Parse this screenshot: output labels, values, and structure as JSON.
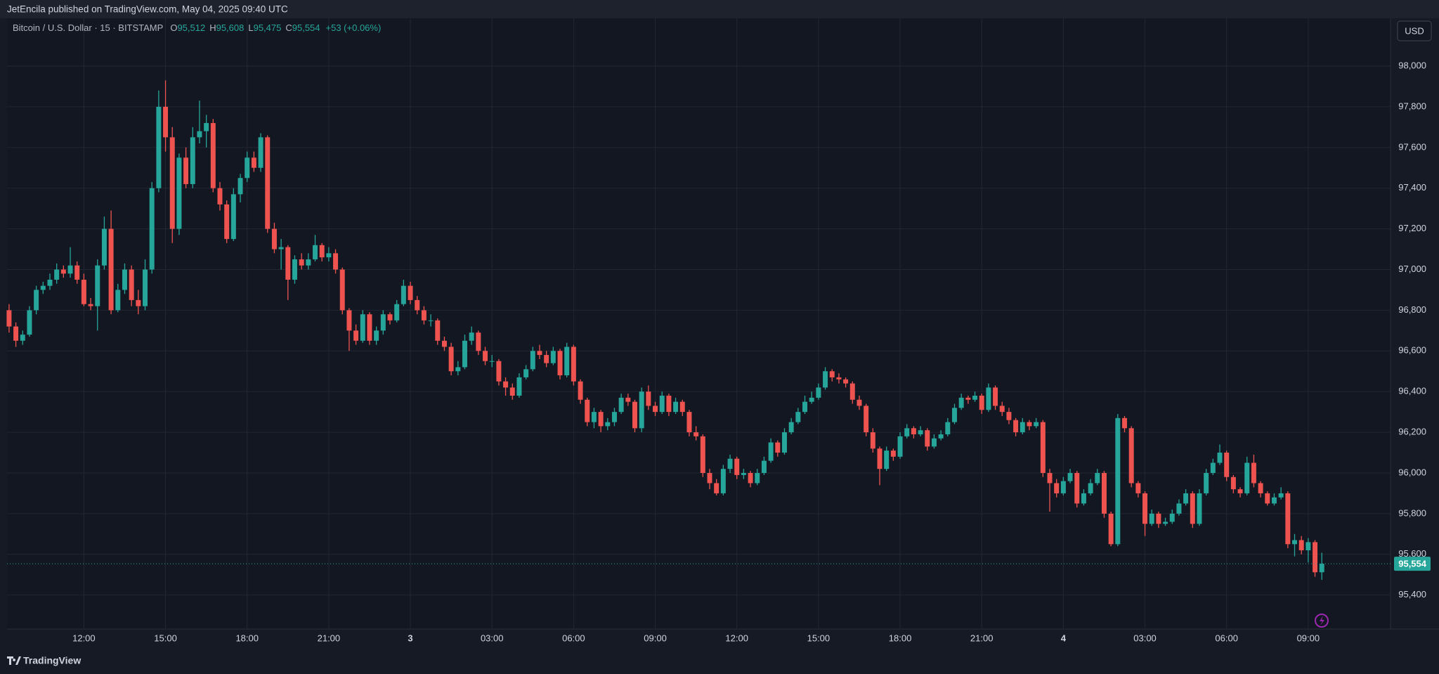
{
  "header": {
    "publisher_line": "JetEncila published on TradingView.com, May 04, 2025 09:40 UTC",
    "currency_button": "USD",
    "footer_brand": "TradingView"
  },
  "chart_data": {
    "type": "candlestick",
    "title": "Bitcoin / U.S. Dollar · 15 · BITSTAMP",
    "ohlc_legend": [
      {
        "label": "O",
        "value_label": "95,512"
      },
      {
        "label": "H",
        "value_label": "95,608"
      },
      {
        "label": "L",
        "value_label": "95,475"
      },
      {
        "label": "C",
        "value_label": "95,554"
      }
    ],
    "change_label": "+53 (+0.06%)",
    "last_price_label": "95,554",
    "up_color": "#26a69a",
    "down_color": "#ef5350",
    "grid": true,
    "xlim": [
      -0.3,
      203.1
    ],
    "xticks": [
      {
        "value": 11,
        "label": "12:00"
      },
      {
        "value": 23,
        "label": "15:00"
      },
      {
        "value": 35,
        "label": "18:00"
      },
      {
        "value": 47,
        "label": "21:00"
      },
      {
        "value": 59,
        "label": "3"
      },
      {
        "value": 71,
        "label": "03:00"
      },
      {
        "value": 83,
        "label": "06:00"
      },
      {
        "value": 95,
        "label": "09:00"
      },
      {
        "value": 107,
        "label": "12:00"
      },
      {
        "value": 119,
        "label": "15:00"
      },
      {
        "value": 131,
        "label": "18:00"
      },
      {
        "value": 143,
        "label": "21:00"
      },
      {
        "value": 155,
        "label": "4"
      },
      {
        "value": 167,
        "label": "03:00"
      },
      {
        "value": 179,
        "label": "06:00"
      },
      {
        "value": 191,
        "label": "09:00"
      }
    ],
    "ylim": [
      95233,
      98235
    ],
    "yticks": [
      {
        "value": 95400,
        "label": "95,400"
      },
      {
        "value": 95600,
        "label": "95,600"
      },
      {
        "value": 95800,
        "label": "95,800"
      },
      {
        "value": 96000,
        "label": "96,000"
      },
      {
        "value": 96200,
        "label": "96,200"
      },
      {
        "value": 96400,
        "label": "96,400"
      },
      {
        "value": 96600,
        "label": "96,600"
      },
      {
        "value": 96800,
        "label": "96,800"
      },
      {
        "value": 97000,
        "label": "97,000"
      },
      {
        "value": 97200,
        "label": "97,200"
      },
      {
        "value": 97400,
        "label": "97,400"
      },
      {
        "value": 97600,
        "label": "97,600"
      },
      {
        "value": 97800,
        "label": "97,800"
      },
      {
        "value": 98000,
        "label": "98,000"
      }
    ],
    "candles": [
      [
        96800,
        96830,
        96690,
        96720
      ],
      [
        96720,
        96740,
        96620,
        96650
      ],
      [
        96650,
        96700,
        96630,
        96680
      ],
      [
        96680,
        96820,
        96670,
        96800
      ],
      [
        96800,
        96920,
        96780,
        96900
      ],
      [
        96900,
        96940,
        96880,
        96920
      ],
      [
        96920,
        96980,
        96900,
        96950
      ],
      [
        96950,
        97030,
        96930,
        97000
      ],
      [
        97000,
        97020,
        96960,
        96980
      ],
      [
        96980,
        97110,
        96960,
        97020
      ],
      [
        97020,
        97040,
        96930,
        96950
      ],
      [
        96950,
        96980,
        96820,
        96830
      ],
      [
        96830,
        96860,
        96800,
        96820
      ],
      [
        96820,
        97050,
        96700,
        97020
      ],
      [
        97020,
        97260,
        97000,
        97200
      ],
      [
        97200,
        97290,
        96780,
        96800
      ],
      [
        96800,
        96930,
        96790,
        96900
      ],
      [
        96900,
        97030,
        96880,
        97000
      ],
      [
        97000,
        97020,
        96820,
        96850
      ],
      [
        96850,
        96900,
        96780,
        96820
      ],
      [
        96820,
        97050,
        96800,
        97000
      ],
      [
        97000,
        97430,
        96980,
        97400
      ],
      [
        97400,
        97880,
        97380,
        97800
      ],
      [
        97800,
        97930,
        97580,
        97650
      ],
      [
        97650,
        97700,
        97130,
        97200
      ],
      [
        97200,
        97570,
        97170,
        97550
      ],
      [
        97550,
        97600,
        97400,
        97420
      ],
      [
        97420,
        97700,
        97400,
        97650
      ],
      [
        97650,
        97830,
        97620,
        97680
      ],
      [
        97680,
        97760,
        97600,
        97720
      ],
      [
        97720,
        97740,
        97380,
        97400
      ],
      [
        97400,
        97430,
        97290,
        97320
      ],
      [
        97320,
        97340,
        97130,
        97150
      ],
      [
        97150,
        97400,
        97140,
        97370
      ],
      [
        97370,
        97470,
        97330,
        97450
      ],
      [
        97450,
        97580,
        97430,
        97550
      ],
      [
        97550,
        97580,
        97480,
        97500
      ],
      [
        97500,
        97670,
        97480,
        97650
      ],
      [
        97650,
        97660,
        97180,
        97200
      ],
      [
        97200,
        97230,
        97080,
        97100
      ],
      [
        97100,
        97150,
        97000,
        97110
      ],
      [
        97110,
        97120,
        96850,
        96950
      ],
      [
        96950,
        97070,
        96930,
        97050
      ],
      [
        97050,
        97080,
        97000,
        97020
      ],
      [
        97020,
        97080,
        97000,
        97050
      ],
      [
        97050,
        97170,
        97040,
        97120
      ],
      [
        97120,
        97130,
        97040,
        97060
      ],
      [
        97060,
        97110,
        97040,
        97080
      ],
      [
        97080,
        97100,
        96980,
        97000
      ],
      [
        97000,
        97010,
        96780,
        96800
      ],
      [
        96800,
        96810,
        96600,
        96700
      ],
      [
        96700,
        96730,
        96630,
        96650
      ],
      [
        96650,
        96800,
        96640,
        96780
      ],
      [
        96780,
        96790,
        96630,
        96650
      ],
      [
        96650,
        96720,
        96630,
        96700
      ],
      [
        96700,
        96800,
        96680,
        96780
      ],
      [
        96780,
        96790,
        96730,
        96750
      ],
      [
        96750,
        96850,
        96740,
        96830
      ],
      [
        96830,
        96950,
        96820,
        96920
      ],
      [
        96920,
        96940,
        96830,
        96850
      ],
      [
        96850,
        96870,
        96780,
        96800
      ],
      [
        96800,
        96820,
        96730,
        96750
      ],
      [
        96750,
        96780,
        96720,
        96750
      ],
      [
        96750,
        96760,
        96630,
        96650
      ],
      [
        96650,
        96670,
        96600,
        96620
      ],
      [
        96620,
        96640,
        96480,
        96500
      ],
      [
        96500,
        96550,
        96480,
        96520
      ],
      [
        96520,
        96680,
        96510,
        96650
      ],
      [
        96650,
        96720,
        96630,
        96690
      ],
      [
        96690,
        96700,
        96580,
        96600
      ],
      [
        96600,
        96620,
        96530,
        96550
      ],
      [
        96550,
        96580,
        96520,
        96550
      ],
      [
        96550,
        96560,
        96430,
        96450
      ],
      [
        96450,
        96470,
        96380,
        96420
      ],
      [
        96420,
        96440,
        96360,
        96380
      ],
      [
        96380,
        96490,
        96370,
        96470
      ],
      [
        96470,
        96530,
        96460,
        96510
      ],
      [
        96510,
        96620,
        96500,
        96600
      ],
      [
        96600,
        96630,
        96560,
        96580
      ],
      [
        96580,
        96600,
        96520,
        96540
      ],
      [
        96540,
        96620,
        96530,
        96600
      ],
      [
        96600,
        96610,
        96460,
        96480
      ],
      [
        96480,
        96640,
        96470,
        96620
      ],
      [
        96620,
        96630,
        96430,
        96450
      ],
      [
        96450,
        96460,
        96340,
        96360
      ],
      [
        96360,
        96370,
        96230,
        96250
      ],
      [
        96250,
        96320,
        96220,
        96300
      ],
      [
        96300,
        96310,
        96200,
        96230
      ],
      [
        96230,
        96270,
        96210,
        96250
      ],
      [
        96250,
        96320,
        96230,
        96300
      ],
      [
        96300,
        96390,
        96290,
        96370
      ],
      [
        96370,
        96390,
        96330,
        96350
      ],
      [
        96350,
        96360,
        96200,
        96220
      ],
      [
        96220,
        96420,
        96200,
        96400
      ],
      [
        96400,
        96430,
        96310,
        96330
      ],
      [
        96330,
        96350,
        96280,
        96300
      ],
      [
        96300,
        96400,
        96290,
        96380
      ],
      [
        96380,
        96390,
        96280,
        96300
      ],
      [
        96300,
        96370,
        96290,
        96350
      ],
      [
        96350,
        96360,
        96280,
        96300
      ],
      [
        96300,
        96310,
        96180,
        96200
      ],
      [
        96200,
        96230,
        96160,
        96180
      ],
      [
        96180,
        96190,
        95980,
        96000
      ],
      [
        96000,
        96020,
        95920,
        95950
      ],
      [
        95950,
        95970,
        95890,
        95900
      ],
      [
        95900,
        96040,
        95890,
        96020
      ],
      [
        96020,
        96090,
        96000,
        96070
      ],
      [
        96070,
        96080,
        95970,
        95990
      ],
      [
        95990,
        96020,
        95970,
        96000
      ],
      [
        96000,
        96010,
        95930,
        95950
      ],
      [
        95950,
        96020,
        95940,
        96000
      ],
      [
        96000,
        96080,
        95990,
        96060
      ],
      [
        96060,
        96170,
        96050,
        96150
      ],
      [
        96150,
        96160,
        96080,
        96100
      ],
      [
        96100,
        96220,
        96090,
        96200
      ],
      [
        96200,
        96270,
        96190,
        96250
      ],
      [
        96250,
        96320,
        96240,
        96300
      ],
      [
        96300,
        96380,
        96290,
        96350
      ],
      [
        96350,
        96400,
        96340,
        96370
      ],
      [
        96370,
        96440,
        96360,
        96420
      ],
      [
        96420,
        96520,
        96410,
        96500
      ],
      [
        96500,
        96510,
        96450,
        96470
      ],
      [
        96470,
        96490,
        96440,
        96460
      ],
      [
        96460,
        96470,
        96420,
        96440
      ],
      [
        96440,
        96450,
        96340,
        96360
      ],
      [
        96360,
        96380,
        96310,
        96330
      ],
      [
        96330,
        96340,
        96180,
        96200
      ],
      [
        96200,
        96220,
        96100,
        96120
      ],
      [
        96120,
        96130,
        95940,
        96020
      ],
      [
        96020,
        96130,
        96010,
        96110
      ],
      [
        96110,
        96120,
        96060,
        96080
      ],
      [
        96080,
        96200,
        96070,
        96180
      ],
      [
        96180,
        96240,
        96170,
        96220
      ],
      [
        96220,
        96230,
        96170,
        96190
      ],
      [
        96190,
        96230,
        96180,
        96210
      ],
      [
        96210,
        96220,
        96110,
        96130
      ],
      [
        96130,
        96190,
        96120,
        96170
      ],
      [
        96170,
        96210,
        96160,
        96190
      ],
      [
        96190,
        96270,
        96180,
        96250
      ],
      [
        96250,
        96340,
        96240,
        96320
      ],
      [
        96320,
        96390,
        96310,
        96370
      ],
      [
        96370,
        96380,
        96340,
        96360
      ],
      [
        96360,
        96400,
        96350,
        96380
      ],
      [
        96380,
        96390,
        96290,
        96310
      ],
      [
        96310,
        96440,
        96300,
        96420
      ],
      [
        96420,
        96430,
        96310,
        96330
      ],
      [
        96330,
        96350,
        96280,
        96300
      ],
      [
        96300,
        96320,
        96240,
        96260
      ],
      [
        96260,
        96270,
        96180,
        96200
      ],
      [
        96200,
        96270,
        96190,
        96250
      ],
      [
        96250,
        96260,
        96210,
        96230
      ],
      [
        96230,
        96270,
        96220,
        96250
      ],
      [
        96250,
        96260,
        95980,
        96000
      ],
      [
        96000,
        96020,
        95810,
        95950
      ],
      [
        95950,
        95970,
        95880,
        95900
      ],
      [
        95900,
        95980,
        95890,
        95960
      ],
      [
        95960,
        96020,
        95950,
        96000
      ],
      [
        96000,
        96010,
        95830,
        95850
      ],
      [
        95850,
        95920,
        95840,
        95900
      ],
      [
        95900,
        95970,
        95890,
        95950
      ],
      [
        95950,
        96020,
        95940,
        96000
      ],
      [
        96000,
        96010,
        95780,
        95800
      ],
      [
        95800,
        95810,
        95640,
        95650
      ],
      [
        95650,
        96290,
        95640,
        96270
      ],
      [
        96270,
        96280,
        96200,
        96220
      ],
      [
        96220,
        96230,
        95930,
        95950
      ],
      [
        95950,
        95960,
        95880,
        95900
      ],
      [
        95900,
        95910,
        95690,
        95750
      ],
      [
        95750,
        95820,
        95740,
        95800
      ],
      [
        95800,
        95810,
        95730,
        95750
      ],
      [
        95750,
        95780,
        95740,
        95760
      ],
      [
        95760,
        95820,
        95750,
        95800
      ],
      [
        95800,
        95870,
        95790,
        95850
      ],
      [
        95850,
        95920,
        95840,
        95900
      ],
      [
        95900,
        95910,
        95730,
        95750
      ],
      [
        95750,
        95920,
        95740,
        95900
      ],
      [
        95900,
        96020,
        95890,
        96000
      ],
      [
        96000,
        96070,
        95990,
        96050
      ],
      [
        96050,
        96140,
        96040,
        96100
      ],
      [
        96100,
        96110,
        95960,
        95980
      ],
      [
        95980,
        95990,
        95900,
        95920
      ],
      [
        95920,
        95930,
        95880,
        95900
      ],
      [
        95900,
        96080,
        95890,
        96050
      ],
      [
        96050,
        96090,
        95930,
        95950
      ],
      [
        95950,
        95960,
        95880,
        95900
      ],
      [
        95900,
        95910,
        95840,
        95850
      ],
      [
        95850,
        95900,
        95840,
        95880
      ],
      [
        95880,
        95930,
        95870,
        95900
      ],
      [
        95900,
        95910,
        95630,
        95650
      ],
      [
        95650,
        95700,
        95590,
        95670
      ],
      [
        95670,
        95690,
        95600,
        95620
      ],
      [
        95620,
        95680,
        95560,
        95660
      ],
      [
        95660,
        95670,
        95490,
        95512
      ],
      [
        95512,
        95608,
        95475,
        95554
      ]
    ]
  }
}
